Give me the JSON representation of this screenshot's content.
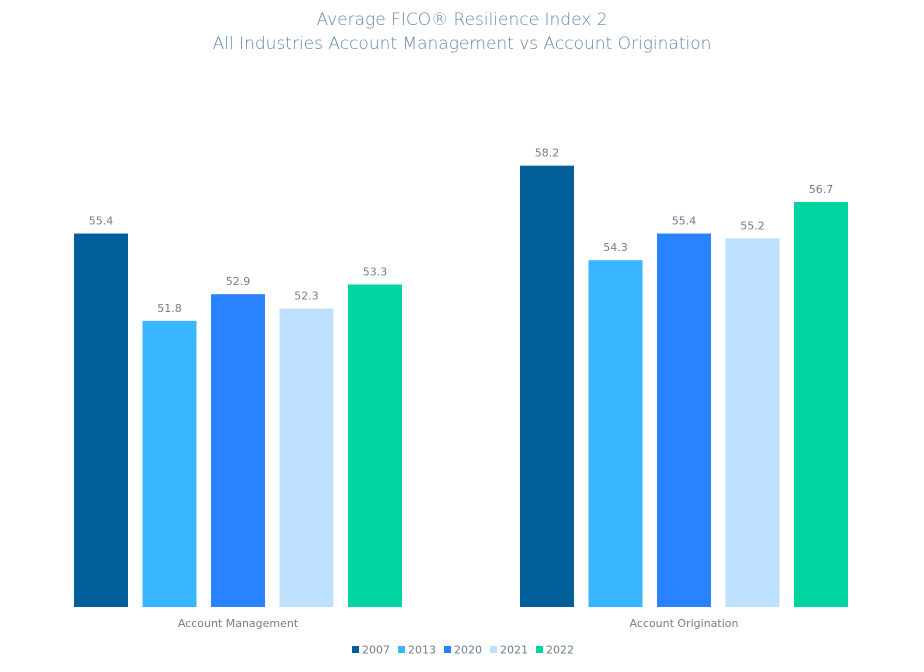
{
  "chart_data": {
    "type": "bar",
    "title": "Average FICO® Resilience Index 2",
    "subtitle": "All Industries Account Management vs Account Origination",
    "categories": [
      "Account Management",
      "Account Origination"
    ],
    "series": [
      {
        "name": "2007",
        "color": "#005f99",
        "values": [
          55.4,
          58.2
        ]
      },
      {
        "name": "2013",
        "color": "#38b6ff",
        "values": [
          51.8,
          54.3
        ]
      },
      {
        "name": "2020",
        "color": "#2982ff",
        "values": [
          52.9,
          55.4
        ]
      },
      {
        "name": "2021",
        "color": "#bde0fe",
        "values": [
          52.3,
          55.2
        ]
      },
      {
        "name": "2022",
        "color": "#00d4a0",
        "values": [
          53.3,
          56.7
        ]
      }
    ],
    "ylim": [
      40,
      60
    ],
    "grid": false,
    "legend": "bottom-center",
    "data_labels": true
  }
}
